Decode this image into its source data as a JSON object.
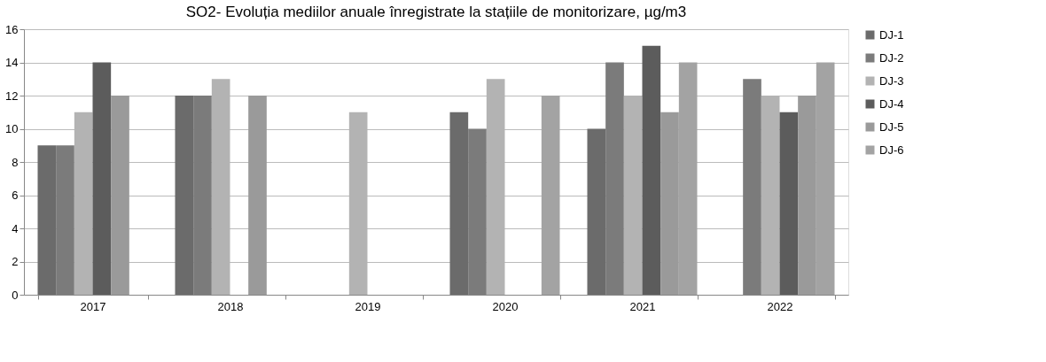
{
  "chart_data": {
    "type": "bar",
    "title": "SO2- Evoluția mediilor anuale înregistrate la  stațiile de monitorizare, µg/m3",
    "categories": [
      "2017",
      "2018",
      "2019",
      "2020",
      "2021",
      "2022"
    ],
    "series": [
      {
        "name": "DJ-1",
        "color": "#6b6b6b",
        "values": [
          9,
          12,
          null,
          11,
          10,
          null
        ]
      },
      {
        "name": "DJ-2",
        "color": "#7b7b7b",
        "values": [
          9,
          12,
          null,
          10,
          14,
          13
        ]
      },
      {
        "name": "DJ-3",
        "color": "#b3b3b3",
        "values": [
          11,
          13,
          11,
          13,
          12,
          12
        ]
      },
      {
        "name": "DJ-4",
        "color": "#5c5c5c",
        "values": [
          14,
          null,
          null,
          null,
          15,
          11
        ]
      },
      {
        "name": "DJ-5",
        "color": "#9a9a9a",
        "values": [
          12,
          12,
          null,
          null,
          11,
          12
        ]
      },
      {
        "name": "DJ-6",
        "color": "#a3a3a3",
        "values": [
          null,
          null,
          null,
          12,
          14,
          14
        ]
      }
    ],
    "ylim": [
      0,
      16
    ],
    "yticks": [
      0,
      2,
      4,
      6,
      8,
      10,
      12,
      14,
      16
    ],
    "grid": "y",
    "legend": "right"
  }
}
